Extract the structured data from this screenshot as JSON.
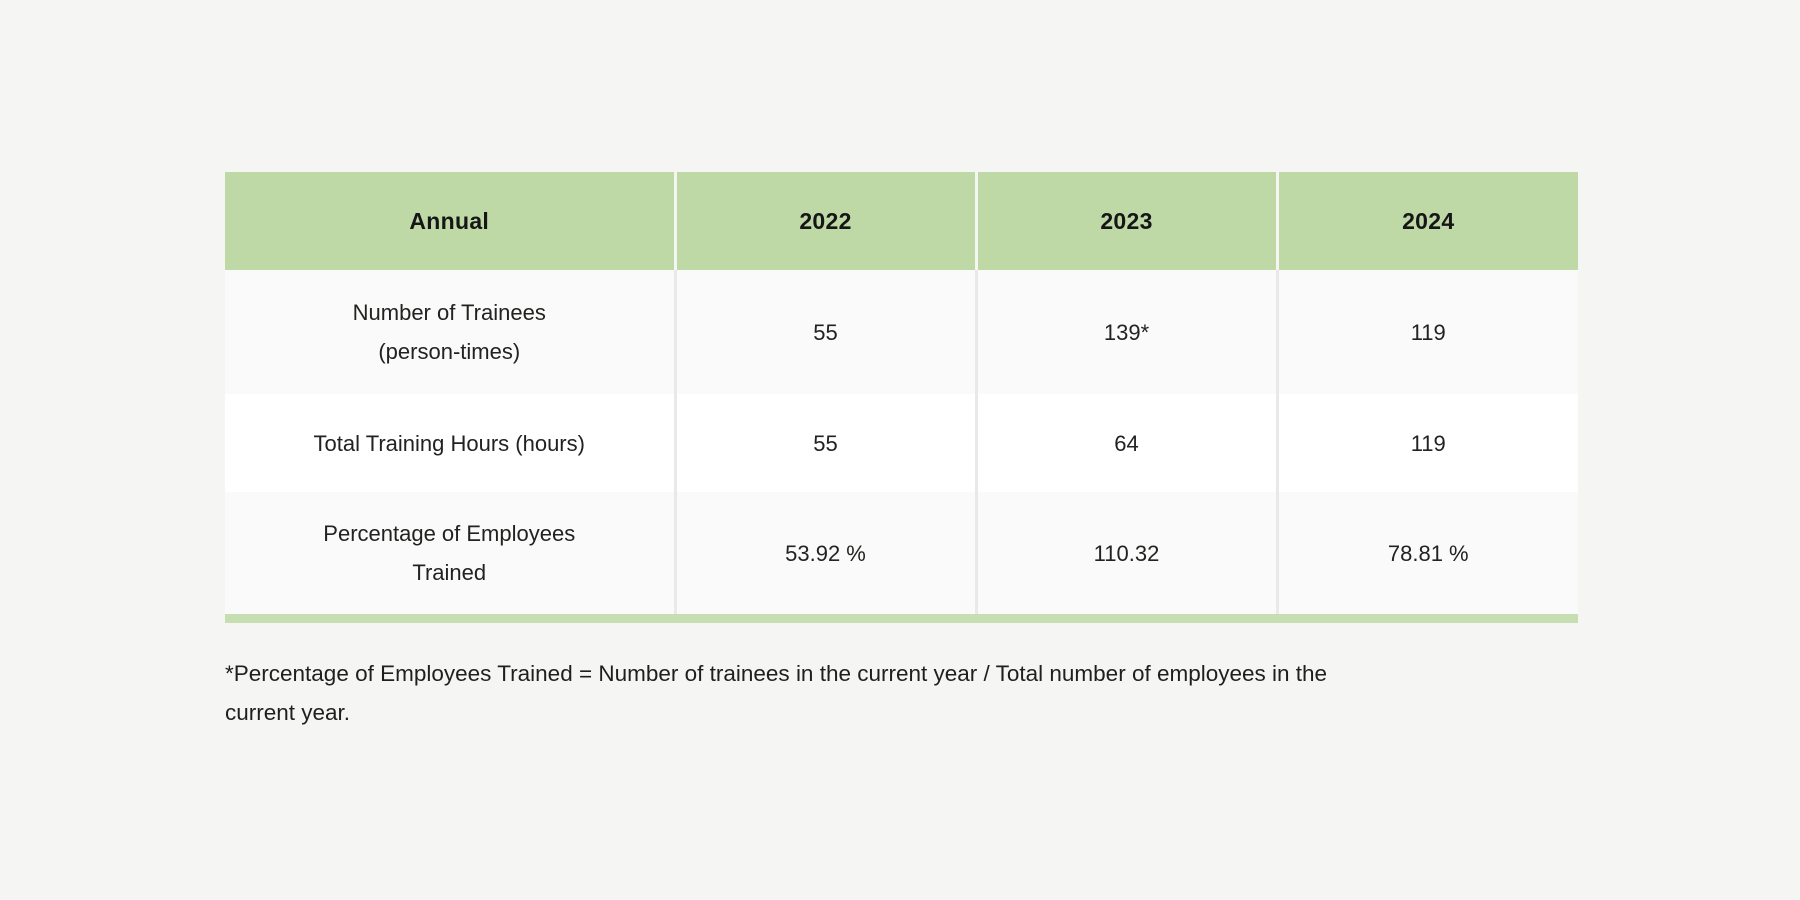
{
  "page": {
    "background_color": "#f5f5f4"
  },
  "table": {
    "header_bg_color": "#bed9a6",
    "bottom_bar_color": "#c6deb1",
    "row_alt_color": "#fafafa",
    "columns": [
      "Annual",
      "2022",
      "2023",
      "2024"
    ],
    "rows": [
      {
        "label": "Number of Trainees\n(person-times)",
        "values": [
          "55",
          "139*",
          "119"
        ]
      },
      {
        "label": "Total Training Hours (hours)",
        "values": [
          "55",
          "64",
          "119"
        ]
      },
      {
        "label": "Percentage of Employees\nTrained",
        "values": [
          "53.92 %",
          "110.32",
          "78.81 %"
        ]
      }
    ]
  },
  "footnote": {
    "text": "*Percentage of Employees Trained = Number of trainees in the current year / Total number of employees in the\ncurrent year."
  }
}
